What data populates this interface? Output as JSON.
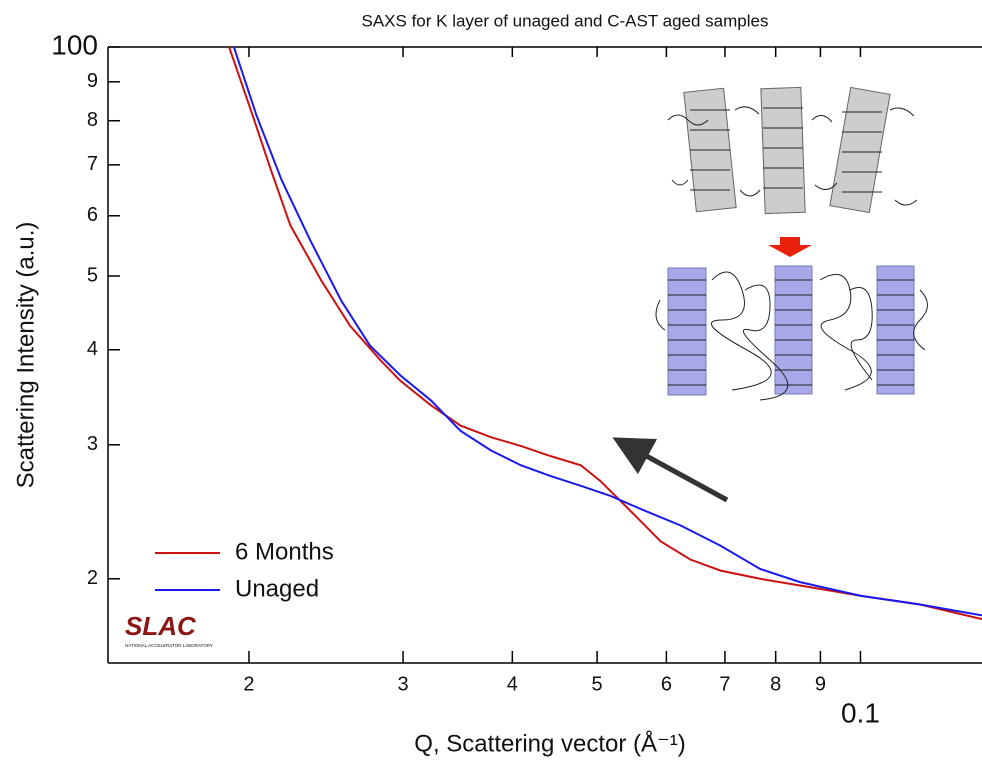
{
  "chart_data": {
    "type": "line",
    "title": "SAXS for K layer of unaged and C-AST aged samples",
    "xlabel": "Q, Scattering vector (Å⁻¹)",
    "ylabel": "Scattering Intensity (a.u.)",
    "log_x": true,
    "log_y": true,
    "xlim": [
      0.0138,
      0.1377
    ],
    "ylim": [
      15.5,
      100
    ],
    "xticks": [
      {
        "value": 0.02,
        "label": "2"
      },
      {
        "value": 0.03,
        "label": "3"
      },
      {
        "value": 0.04,
        "label": "4"
      },
      {
        "value": 0.05,
        "label": "5"
      },
      {
        "value": 0.06,
        "label": "6"
      },
      {
        "value": 0.07,
        "label": "7"
      },
      {
        "value": 0.08,
        "label": "8"
      },
      {
        "value": 0.09,
        "label": "9"
      },
      0.1
    ],
    "yticks": [
      {
        "value": 20,
        "label": "2"
      },
      {
        "value": 30,
        "label": "3"
      },
      {
        "value": 40,
        "label": "4"
      },
      {
        "value": 50,
        "label": "5"
      },
      {
        "value": 60,
        "label": "6"
      },
      {
        "value": 70,
        "label": "7"
      },
      {
        "value": 80,
        "label": "8"
      },
      {
        "value": 90,
        "label": "9"
      },
      100
    ],
    "legend": "lower left",
    "series": [
      {
        "name": "6 Months",
        "color": "#cc1111",
        "x": [
          0.01898,
          0.0201,
          0.0212,
          0.0223,
          0.0242,
          0.0261,
          0.0283,
          0.0298,
          0.0323,
          0.0349,
          0.0378,
          0.0409,
          0.0442,
          0.0479,
          0.0504,
          0.0532,
          0.0561,
          0.0591,
          0.0639,
          0.0692,
          0.0768,
          0.0853,
          0.1,
          0.117,
          0.1377
        ],
        "values": [
          100,
          82.6,
          68.8,
          58.3,
          49.3,
          43.0,
          38.7,
          36.4,
          33.8,
          31.8,
          30.7,
          29.9,
          29.0,
          28.2,
          26.9,
          25.3,
          23.8,
          22.4,
          21.2,
          20.5,
          20,
          19.6,
          19.0,
          18.5,
          17.7
        ]
      },
      {
        "name": "Unaged",
        "color": "#1a1aee",
        "x": [
          0.01922,
          0.0204,
          0.0218,
          0.0235,
          0.0255,
          0.0275,
          0.0298,
          0.0323,
          0.0349,
          0.0378,
          0.0409,
          0.0442,
          0.0479,
          0.0518,
          0.0561,
          0.0623,
          0.0692,
          0.0768,
          0.0853,
          0.1,
          0.117,
          0.1377
        ],
        "values": [
          100,
          81.3,
          66.8,
          55.7,
          46.4,
          40.5,
          37.0,
          34.3,
          31.3,
          29.5,
          28.2,
          27.3,
          26.5,
          25.7,
          24.7,
          23.5,
          22.1,
          20.6,
          19.8,
          19.0,
          18.5,
          17.9
        ]
      }
    ],
    "logo": {
      "name": "SLAC",
      "subtitle": "NATIONAL ACCELERATOR LABORATORY"
    }
  }
}
